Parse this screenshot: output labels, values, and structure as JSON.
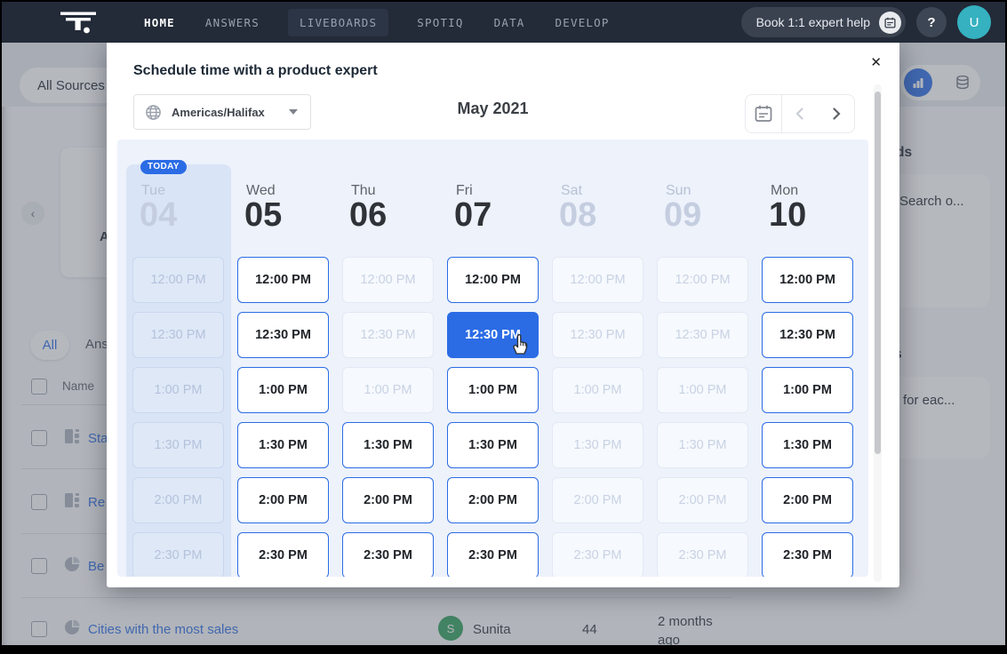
{
  "colors": {
    "accent_blue": "#2b6ce5",
    "nav_bg": "#232a38",
    "avatar_teal": "#35b1c0",
    "avatar_green": "#2e9e5c",
    "grid_bg": "#edf2fb",
    "today_col_bg": "#d9e4f6"
  },
  "nav": {
    "items": [
      {
        "label": "HOME",
        "active": true
      },
      {
        "label": "ANSWERS"
      },
      {
        "label": "LIVEBOARDS",
        "highlighted": true
      },
      {
        "label": "SPOTIQ"
      },
      {
        "label": "DATA"
      },
      {
        "label": "DEVELOP"
      }
    ],
    "book_button_label": "Book 1:1 expert help",
    "help_label": "?",
    "avatar_initial": "U"
  },
  "background": {
    "sources_pill_label": "All Sources",
    "tab_all_label": "All",
    "tab_answers_label": "Ans",
    "card_letter": "A",
    "table": {
      "name_header": "Name",
      "rows": [
        {
          "label": "Sta"
        },
        {
          "label": "Re"
        },
        {
          "label": "Be"
        },
        {
          "label": "Cities with the most sales",
          "owner_initial": "S",
          "owner": "Sunita",
          "views": "44",
          "modified": "2 months ago"
        }
      ]
    },
    "right_panel": {
      "heading_fragment_1": "ds",
      "card_fragment_1": "Search o...",
      "heading_fragment_2": "s",
      "card_fragment_2": "for eac..."
    }
  },
  "modal": {
    "title": "Schedule time with a product expert",
    "close_glyph": "✕",
    "timezone_value": "Americas/Halifax",
    "month_label": "May 2021",
    "today_badge_label": "TODAY",
    "times": [
      "12:00 PM",
      "12:30 PM",
      "1:00 PM",
      "1:30 PM",
      "2:00 PM",
      "2:30 PM"
    ],
    "days": [
      {
        "weekday": "Tue",
        "date": "04",
        "today": true,
        "slots": [
          "disabled",
          "disabled",
          "disabled",
          "disabled",
          "disabled",
          "disabled"
        ]
      },
      {
        "weekday": "Wed",
        "date": "05",
        "slots": [
          "enabled",
          "enabled",
          "enabled",
          "enabled",
          "enabled",
          "enabled"
        ]
      },
      {
        "weekday": "Thu",
        "date": "06",
        "slots": [
          "disabled",
          "disabled",
          "disabled",
          "enabled",
          "enabled",
          "enabled"
        ]
      },
      {
        "weekday": "Fri",
        "date": "07",
        "slots": [
          "enabled",
          "selected",
          "enabled",
          "enabled",
          "enabled",
          "enabled"
        ]
      },
      {
        "weekday": "Sat",
        "date": "08",
        "slots": [
          "disabled",
          "disabled",
          "disabled",
          "disabled",
          "disabled",
          "disabled"
        ]
      },
      {
        "weekday": "Sun",
        "date": "09",
        "slots": [
          "disabled",
          "disabled",
          "disabled",
          "disabled",
          "disabled",
          "disabled"
        ]
      },
      {
        "weekday": "Mon",
        "date": "10",
        "slots": [
          "enabled",
          "enabled",
          "enabled",
          "enabled",
          "enabled",
          "enabled"
        ]
      }
    ]
  }
}
